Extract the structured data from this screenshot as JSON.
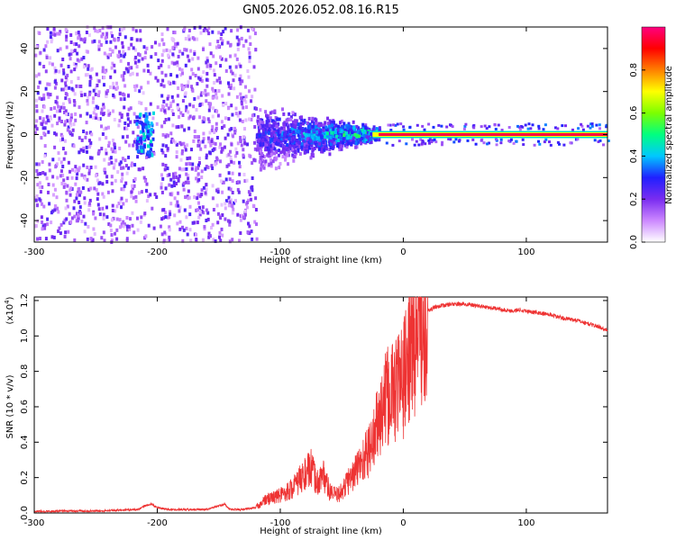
{
  "title": "GN05.2026.052.08.16.R15",
  "chart_data": [
    {
      "type": "heatmap",
      "xlabel": "Height of straight line (km)",
      "ylabel": "Frequency (Hz)",
      "xlim": [
        -300,
        166
      ],
      "ylim": [
        -50,
        50
      ],
      "xticks": [
        -300,
        -200,
        -100,
        0,
        100
      ],
      "yticks": [
        -40,
        -20,
        0,
        20,
        40
      ],
      "colorbar": {
        "label": "Normalized spectral amplitude",
        "range": [
          0.0,
          1.0
        ],
        "ticks": [
          0.0,
          0.2,
          0.4,
          0.6,
          0.8
        ],
        "colors": [
          "#ffffff",
          "#cc88ff",
          "#7a2cf0",
          "#2020ff",
          "#00c8ff",
          "#00ff80",
          "#7cff00",
          "#ffff00",
          "#ff8000",
          "#ff0000",
          "#ff0080"
        ]
      },
      "regions": [
        {
          "name": "noise",
          "x": [
            -300,
            -120
          ],
          "freq_spread": 50,
          "amplitude": 0.15
        },
        {
          "name": "transition",
          "x": [
            -120,
            -20
          ],
          "freq_spread_from": 18,
          "freq_spread_to": 4,
          "amplitude_from": 0.25,
          "amplitude_to": 0.45
        },
        {
          "name": "carrier",
          "x": [
            -20,
            166
          ],
          "freq": 0,
          "amplitude": 0.95
        }
      ]
    },
    {
      "type": "line",
      "xlabel": "Height of straight line (km)",
      "ylabel": "SNR (10 * v/v)",
      "yscale_label": "(x10",
      "yscale_exp": "4",
      "yscale_close": ")",
      "xlim": [
        -300,
        166
      ],
      "ylim": [
        0.0,
        1.22
      ],
      "xticks": [
        -300,
        -200,
        -100,
        0,
        100
      ],
      "yticks": [
        "0.0",
        "0.2",
        "0.4",
        "0.6",
        "0.8",
        "1.0",
        "1.2"
      ],
      "series": [
        {
          "name": "SNR",
          "color": "#ee3333",
          "x": [
            -300,
            -250,
            -215,
            -210,
            -205,
            -200,
            -190,
            -160,
            -145,
            -143,
            -140,
            -130,
            -120,
            -115,
            -110,
            -100,
            -90,
            -80,
            -75,
            -70,
            -65,
            -60,
            -55,
            -50,
            -45,
            -40,
            -35,
            -30,
            -25,
            -20,
            -15,
            -10,
            -5,
            0,
            5,
            10,
            15,
            20,
            25,
            30,
            40,
            50,
            60,
            70,
            80,
            90,
            95,
            100,
            110,
            120,
            130,
            140,
            150,
            160,
            166
          ],
          "values": [
            0.01,
            0.012,
            0.02,
            0.04,
            0.05,
            0.03,
            0.02,
            0.02,
            0.05,
            0.03,
            0.02,
            0.02,
            0.03,
            0.06,
            0.08,
            0.1,
            0.14,
            0.22,
            0.25,
            0.17,
            0.22,
            0.12,
            0.1,
            0.12,
            0.18,
            0.22,
            0.28,
            0.33,
            0.4,
            0.52,
            0.62,
            0.68,
            0.72,
            0.75,
            0.9,
            1.0,
            1.1,
            1.14,
            1.16,
            1.17,
            1.18,
            1.18,
            1.17,
            1.16,
            1.15,
            1.14,
            1.15,
            1.14,
            1.13,
            1.12,
            1.1,
            1.09,
            1.07,
            1.05,
            1.03
          ]
        }
      ]
    }
  ]
}
